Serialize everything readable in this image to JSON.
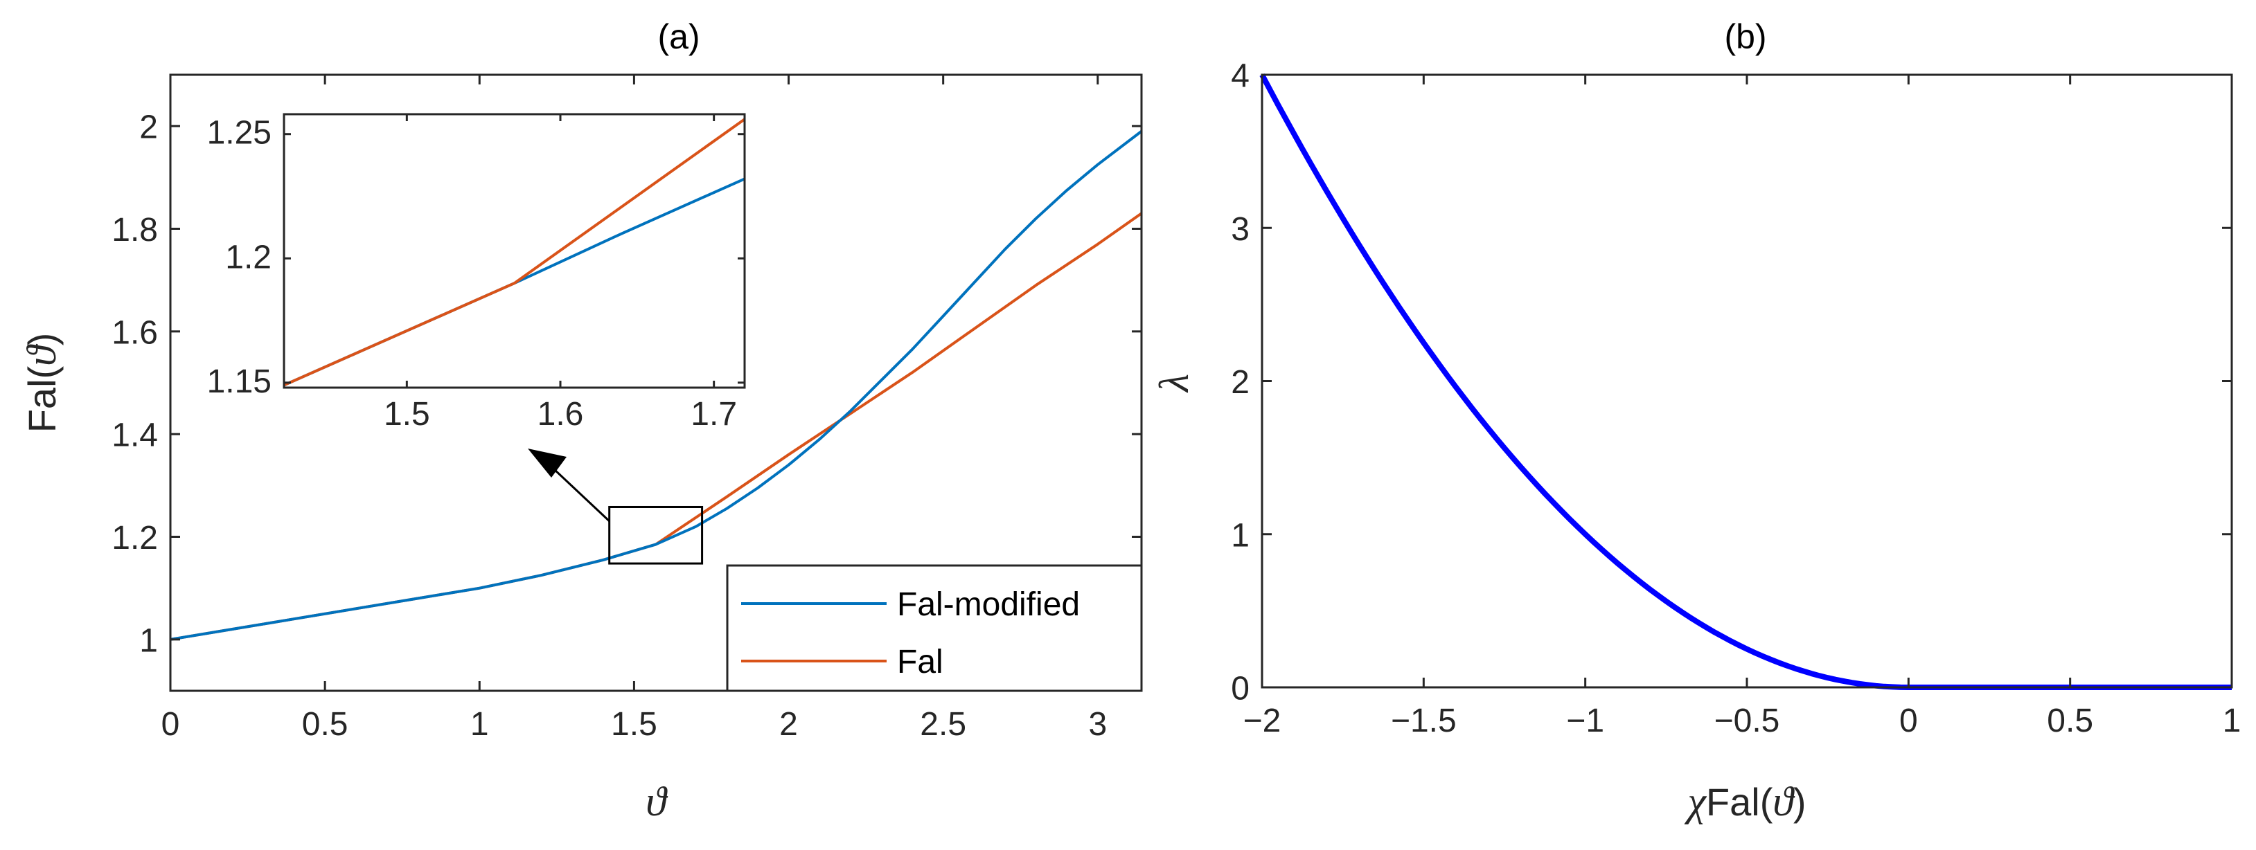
{
  "colors": {
    "blue": "#0072BD",
    "orange": "#D95319",
    "bold_blue": "#0000FF",
    "axis": "#262626"
  },
  "chart_data": [
    {
      "type": "line",
      "title": "(a)",
      "xlabel": "ϑ",
      "ylabel": "Fal(ϑ)",
      "ylabel_prefix": "Fal(",
      "ylabel_symbol": "ϑ",
      "ylabel_suffix": ")",
      "xlim": [
        0,
        3.1416
      ],
      "ylim": [
        0.9,
        2.1
      ],
      "xticks": [
        0,
        0.5,
        1,
        1.5,
        2,
        2.5,
        3
      ],
      "xtick_labels": [
        "0",
        "0.5",
        "1",
        "1.5",
        "2",
        "2.5",
        "3"
      ],
      "yticks": [
        1,
        1.2,
        1.4,
        1.6,
        1.8,
        2
      ],
      "ytick_labels": [
        "1",
        "1.2",
        "1.4",
        "1.6",
        "1.8",
        "2"
      ],
      "legend": {
        "placement": "bottom-right"
      },
      "series": [
        {
          "name": "Fal-modified",
          "color": "#0072BD",
          "x": [
            0,
            0.2,
            0.4,
            0.6,
            0.8,
            1.0,
            1.2,
            1.4,
            1.57,
            1.7,
            1.8,
            1.9,
            2.0,
            2.1,
            2.2,
            2.3,
            2.4,
            2.5,
            2.6,
            2.7,
            2.8,
            2.9,
            3.0,
            3.1416
          ],
          "y": [
            1.0,
            1.02,
            1.04,
            1.06,
            1.08,
            1.1,
            1.125,
            1.155,
            1.185,
            1.22,
            1.255,
            1.295,
            1.34,
            1.39,
            1.445,
            1.505,
            1.565,
            1.63,
            1.695,
            1.76,
            1.82,
            1.875,
            1.925,
            1.99
          ]
        },
        {
          "name": "Fal",
          "color": "#D95319",
          "x": [
            0,
            0.2,
            0.4,
            0.6,
            0.8,
            1.0,
            1.2,
            1.4,
            1.57,
            1.8,
            2.0,
            2.2,
            2.4,
            2.6,
            2.8,
            3.0,
            3.1416
          ],
          "y": [
            1.0,
            1.02,
            1.04,
            1.06,
            1.08,
            1.1,
            1.125,
            1.155,
            1.185,
            1.278,
            1.36,
            1.44,
            1.52,
            1.605,
            1.69,
            1.77,
            1.83
          ]
        }
      ],
      "zoom_region": {
        "xlim": [
          1.42,
          1.72
        ],
        "ylim": [
          1.148,
          1.258
        ]
      },
      "inset": {
        "xlim": [
          1.42,
          1.72
        ],
        "ylim": [
          1.148,
          1.258
        ],
        "xticks": [
          1.5,
          1.6,
          1.7
        ],
        "xtick_labels": [
          "1.5",
          "1.6",
          "1.7"
        ],
        "yticks": [
          1.15,
          1.2,
          1.25
        ],
        "ytick_labels": [
          "1.15",
          "1.2",
          "1.25"
        ],
        "series": [
          {
            "name": "Fal-modified",
            "color": "#0072BD",
            "x": [
              1.42,
              1.57,
              1.64,
              1.72
            ],
            "y": [
              1.149,
              1.19,
              1.21,
              1.232
            ]
          },
          {
            "name": "Fal",
            "color": "#D95319",
            "x": [
              1.42,
              1.57,
              1.72
            ],
            "y": [
              1.149,
              1.19,
              1.256
            ]
          }
        ]
      }
    },
    {
      "type": "line",
      "title": "(b)",
      "xlabel": "χFal(ϑ)",
      "xlabel_symbol": "χ",
      "xlabel_prefix": "Fal(",
      "xlabel_symbol2": "ϑ",
      "xlabel_suffix": ")",
      "ylabel": "λ",
      "xlim": [
        -2,
        1
      ],
      "ylim": [
        0,
        4
      ],
      "xticks": [
        -2,
        -1.5,
        -1,
        -0.5,
        0,
        0.5,
        1
      ],
      "xtick_labels": [
        "−2",
        "−1.5",
        "−1",
        "−0.5",
        "0",
        "0.5",
        "1"
      ],
      "yticks": [
        0,
        1,
        2,
        3,
        4
      ],
      "ytick_labels": [
        "0",
        "1",
        "2",
        "3",
        "4"
      ],
      "series": [
        {
          "color": "#0000FF",
          "x": [
            -2,
            -1.75,
            -1.5,
            -1.25,
            -1,
            -0.75,
            -0.5,
            -0.25,
            0,
            0.25,
            0.5,
            0.75,
            1
          ],
          "y": [
            4,
            3.0625,
            2.25,
            1.5625,
            1,
            0.5625,
            0.25,
            0.0625,
            0,
            0,
            0,
            0,
            0
          ]
        }
      ]
    }
  ]
}
